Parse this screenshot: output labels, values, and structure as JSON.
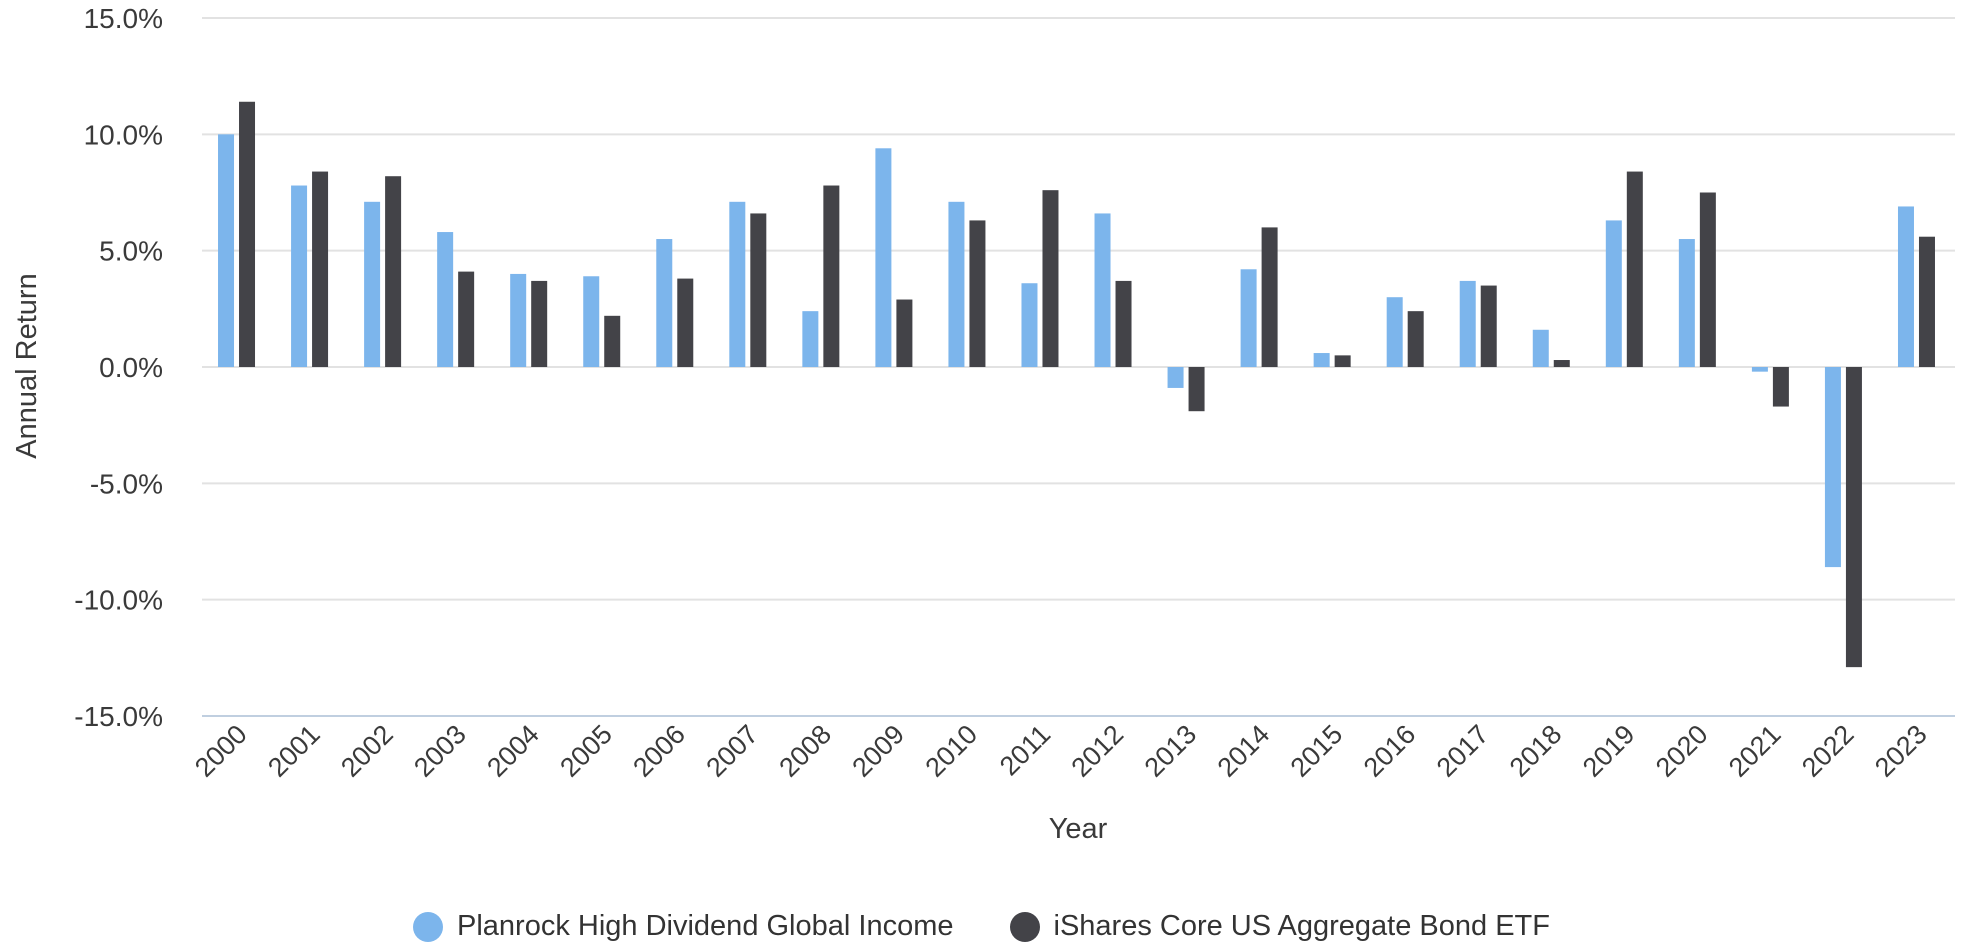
{
  "chart_data": {
    "type": "bar",
    "title": "",
    "xlabel": "Year",
    "ylabel": "Annual Return",
    "ylim": [
      -15,
      15
    ],
    "yticks": [
      -15,
      -10,
      -5,
      0,
      5,
      10,
      15
    ],
    "ytick_labels": [
      "-15.0%",
      "-10.0%",
      "-5.0%",
      "0.0%",
      "5.0%",
      "10.0%",
      "15.0%"
    ],
    "grid": true,
    "legend_position": "bottom",
    "categories": [
      "2000",
      "2001",
      "2002",
      "2003",
      "2004",
      "2005",
      "2006",
      "2007",
      "2008",
      "2009",
      "2010",
      "2011",
      "2012",
      "2013",
      "2014",
      "2015",
      "2016",
      "2017",
      "2018",
      "2019",
      "2020",
      "2021",
      "2022",
      "2023"
    ],
    "series": [
      {
        "name": "Planrock High Dividend Global Income",
        "color": "#7cb5ec",
        "values": [
          10.0,
          7.8,
          7.1,
          5.8,
          4.0,
          3.9,
          5.5,
          7.1,
          2.4,
          9.4,
          7.1,
          3.6,
          6.6,
          -0.9,
          4.2,
          0.6,
          3.0,
          3.7,
          1.6,
          6.3,
          5.5,
          -0.2,
          -8.6,
          6.9
        ]
      },
      {
        "name": "iShares Core US Aggregate Bond ETF",
        "color": "#434348",
        "values": [
          11.4,
          8.4,
          8.2,
          4.1,
          3.7,
          2.2,
          3.8,
          6.6,
          7.8,
          2.9,
          6.3,
          7.6,
          3.7,
          -1.9,
          6.0,
          0.5,
          2.4,
          3.5,
          0.3,
          8.4,
          7.5,
          -1.7,
          -12.9,
          5.6
        ]
      }
    ]
  }
}
